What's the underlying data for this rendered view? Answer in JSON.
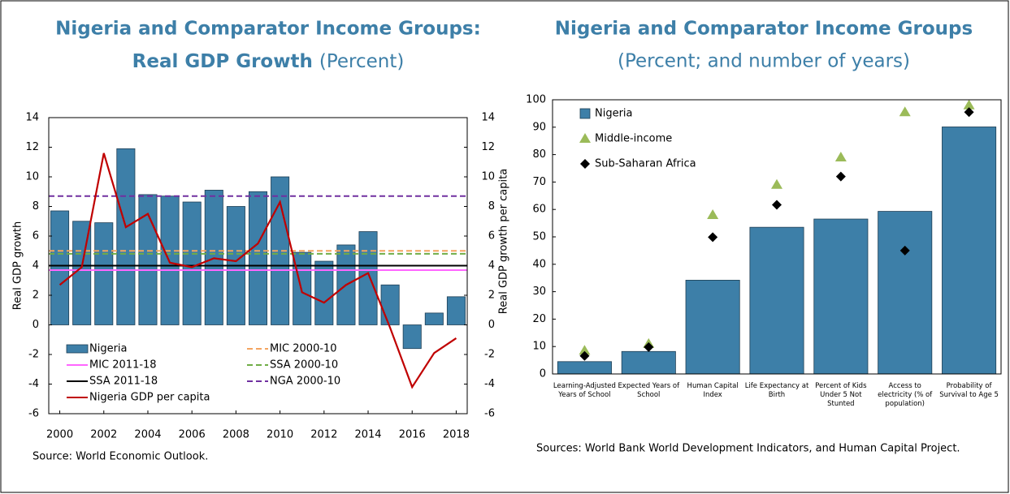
{
  "chart_data": [
    {
      "type": "bar_line",
      "title": "Nigeria and Comparator Income Groups:",
      "title_bold": "Real GDP Growth",
      "title_suffix": "(Percent)",
      "x": [
        2000,
        2001,
        2002,
        2003,
        2004,
        2005,
        2006,
        2007,
        2008,
        2009,
        2010,
        2011,
        2012,
        2013,
        2014,
        2015,
        2016,
        2017,
        2018
      ],
      "xlim": [
        1999.5,
        2018.5
      ],
      "xticks": [
        2000,
        2002,
        2004,
        2006,
        2008,
        2010,
        2012,
        2014,
        2016,
        2018
      ],
      "ylim": [
        -6,
        14
      ],
      "yticks": [
        -6,
        -4,
        -2,
        0,
        2,
        4,
        6,
        8,
        10,
        12,
        14
      ],
      "y2lim": [
        -6,
        14
      ],
      "y2ticks": [
        -6,
        -4,
        -2,
        0,
        2,
        4,
        6,
        8,
        10,
        12,
        14
      ],
      "ylabel": "Real GDP growth",
      "y2label": "Real GDP growth per capita",
      "series": [
        {
          "name": "Nigeria",
          "color": "#3d7fa8",
          "values": [
            7.7,
            7.0,
            6.9,
            11.9,
            8.8,
            8.7,
            8.3,
            9.1,
            8.0,
            9.0,
            10.0,
            4.9,
            4.3,
            5.4,
            6.3,
            2.7,
            -1.6,
            0.8,
            1.9
          ]
        },
        {
          "name": "Nigeria GDP per capita",
          "color": "#c00000",
          "axis": "y2",
          "values": [
            2.7,
            3.9,
            11.6,
            6.6,
            7.5,
            4.2,
            3.9,
            4.5,
            4.3,
            5.5,
            8.3,
            2.2,
            1.5,
            2.7,
            3.5,
            -0.2,
            -4.2,
            -1.9,
            -0.9
          ]
        }
      ],
      "reference_lines": [
        {
          "name": "MIC 2000-10",
          "color": "#f4a460",
          "value": 5.0,
          "dashed": true
        },
        {
          "name": "MIC 2011-18",
          "color": "#ff66ff",
          "value": 3.7,
          "dashed": false
        },
        {
          "name": "SSA 2000-10",
          "color": "#70ad47",
          "value": 4.8,
          "dashed": true
        },
        {
          "name": "SSA 2011-18",
          "color": "#000000",
          "value": 4.0,
          "dashed": false
        },
        {
          "name": "NGA 2000-10",
          "color": "#7030a0",
          "value": 8.7,
          "dashed": true
        }
      ],
      "source": "Source: World Economic Outlook."
    },
    {
      "type": "bar_markers",
      "title": "Nigeria and Comparator Income Groups",
      "subtitle": "(Percent; and number of years)",
      "categories": [
        [
          "Learning-Adjusted",
          "Years of School"
        ],
        [
          "Expected Years of",
          "School"
        ],
        [
          "Human Capital",
          "Index"
        ],
        [
          "Life Expectancy at",
          "Birth"
        ],
        [
          "Percent of Kids",
          "Under 5 Not",
          "Stunted"
        ],
        [
          "Access to",
          "electricity (% of",
          "population)"
        ],
        [
          "Probability of",
          "Survival to Age 5"
        ]
      ],
      "ylim": [
        0,
        100
      ],
      "yticks": [
        0,
        10,
        20,
        30,
        40,
        50,
        60,
        70,
        80,
        90,
        100
      ],
      "series": [
        {
          "name": "Nigeria",
          "color": "#3d7fa8",
          "marker": "bar",
          "values": [
            4.5,
            8.2,
            34.2,
            53.5,
            56.5,
            59.3,
            90.1
          ]
        },
        {
          "name": "Middle-income",
          "color": "#9bbb59",
          "marker": "triangle",
          "values": [
            8.5,
            11.0,
            58.0,
            69.0,
            79.0,
            95.5,
            98.0
          ]
        },
        {
          "name": "Sub-Saharan Africa",
          "color": "#000000",
          "marker": "diamond",
          "values": [
            6.6,
            9.8,
            49.9,
            61.7,
            72.0,
            45.0,
            95.5
          ]
        }
      ],
      "source": "Sources: World Bank World Development Indicators, and Human Capital Project."
    }
  ]
}
